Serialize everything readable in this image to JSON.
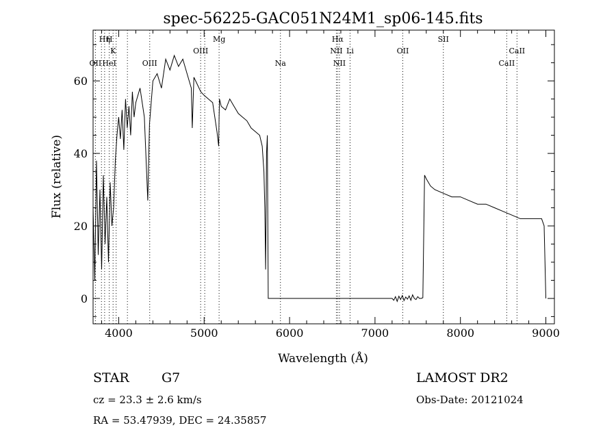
{
  "chart_data": {
    "type": "line",
    "title": "spec-56225-GAC051N24M1_sp06-145.fits",
    "xlabel": "Wavelength (Å)",
    "ylabel": "Flux (relative)",
    "xlim": [
      3700,
      9100
    ],
    "ylim": [
      -7,
      74
    ],
    "x_ticks": [
      4000,
      5000,
      6000,
      7000,
      8000,
      9000
    ],
    "y_ticks": [
      0,
      20,
      40,
      60
    ],
    "grid": false,
    "series": [
      {
        "x": [
          3700,
          3720,
          3740,
          3760,
          3780,
          3800,
          3820,
          3840,
          3860,
          3880,
          3900,
          3920,
          3940,
          3960,
          3980,
          4000,
          4020,
          4040,
          4060,
          4080,
          4100,
          4120,
          4140,
          4160,
          4180,
          4200,
          4250,
          4300,
          4340,
          4360,
          4400,
          4450,
          4500,
          4550,
          4600,
          4650,
          4700,
          4750,
          4800,
          4850,
          4861,
          4880,
          4920,
          4960,
          5000,
          5050,
          5100,
          5150,
          5170,
          5175,
          5180,
          5200,
          5250,
          5300,
          5350,
          5400,
          5450,
          5500,
          5550,
          5600,
          5650,
          5680,
          5700,
          5710,
          5720,
          5730,
          5740,
          5750,
          6000,
          6500,
          7000,
          7200,
          7220,
          7240,
          7260,
          7280,
          7300,
          7320,
          7340,
          7360,
          7380,
          7400,
          7420,
          7440,
          7460,
          7480,
          7500,
          7520,
          7540,
          7560,
          7580,
          7600,
          7650,
          7700,
          7800,
          7900,
          8000,
          8100,
          8200,
          8300,
          8400,
          8500,
          8600,
          8700,
          8800,
          8900,
          8950,
          8980,
          9000
        ],
        "y": [
          25,
          5,
          38,
          12,
          30,
          8,
          34,
          15,
          28,
          10,
          32,
          20,
          25,
          38,
          45,
          50,
          44,
          52,
          41,
          55,
          47,
          53,
          45,
          57,
          50,
          54,
          58,
          50,
          27,
          48,
          60,
          62,
          58,
          66,
          63,
          67,
          64,
          66,
          62,
          58,
          47,
          61,
          59,
          57,
          56,
          55,
          54,
          46,
          42,
          50,
          55,
          53,
          52,
          55,
          53,
          51,
          50,
          49,
          47,
          46,
          45,
          42,
          35,
          25,
          8,
          40,
          45,
          0,
          0,
          0,
          0,
          0,
          -0.5,
          0.5,
          -0.8,
          0.6,
          -0.3,
          0.8,
          -0.6,
          0.4,
          -0.2,
          0.7,
          -0.5,
          1,
          0,
          -0.3,
          0.5,
          0,
          0,
          0.2,
          34,
          33,
          31,
          30,
          29,
          28,
          28,
          27,
          26,
          26,
          25,
          24,
          23,
          22,
          22,
          22,
          22,
          20,
          0
        ],
        "color": "#000000"
      }
    ],
    "annotations": [
      {
        "label": "Hη",
        "x": 3835,
        "row": 1
      },
      {
        "label": "H",
        "x": 3890,
        "row": 1
      },
      {
        "label": "K",
        "x": 3934,
        "row": 2
      },
      {
        "label": "OII",
        "x": 3727,
        "row": 3
      },
      {
        "label": "HeI",
        "x": 3889,
        "row": 3
      },
      {
        "label": "OIII",
        "x": 4363,
        "row": 3
      },
      {
        "label": "OIII",
        "x": 4959,
        "row": 2
      },
      {
        "label": "Mg",
        "x": 5175,
        "row": 1
      },
      {
        "label": "Na",
        "x": 5893,
        "row": 3
      },
      {
        "label": "Hα",
        "x": 6563,
        "row": 1
      },
      {
        "label": "NII",
        "x": 6548,
        "row": 2
      },
      {
        "label": "Li",
        "x": 6708,
        "row": 2
      },
      {
        "label": "NII",
        "x": 6584,
        "row": 3
      },
      {
        "label": "OII",
        "x": 7325,
        "row": 2
      },
      {
        "label": "SII",
        "x": 7800,
        "row": 1
      },
      {
        "label": "CaII",
        "x": 8662,
        "row": 2
      },
      {
        "label": "CaII",
        "x": 8542,
        "row": 3
      }
    ],
    "line_markers_x": [
      3727,
      3798,
      3835,
      3889,
      3934,
      3970,
      4102,
      4363,
      4959,
      5007,
      5175,
      5893,
      6548,
      6563,
      6584,
      6708,
      7325,
      7800,
      8542,
      8662
    ]
  },
  "info": {
    "object_class": "STAR",
    "subclass": "G7",
    "survey": "LAMOST DR2",
    "cz": "cz = 23.3 ± 2.6 km/s",
    "obs_date": "Obs-Date: 20121024",
    "radec": "RA =  53.47939, DEC =  24.35857"
  }
}
